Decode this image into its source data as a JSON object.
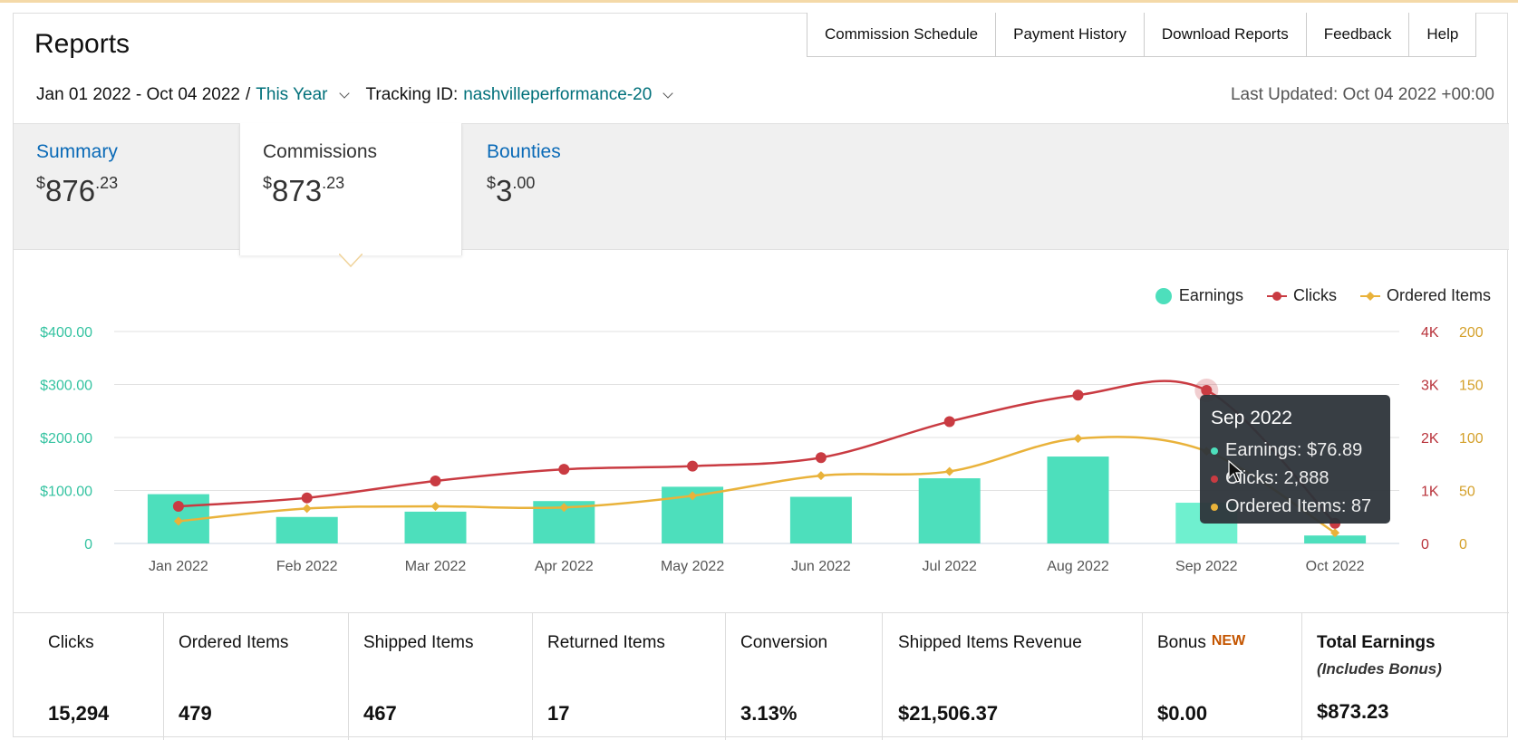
{
  "header": {
    "title": "Reports",
    "nav": [
      "Commission Schedule",
      "Payment History",
      "Download Reports",
      "Feedback",
      "Help"
    ],
    "date_range": "Jan 01 2022 - Oct 04 2022",
    "date_separator": "/",
    "period": "This Year",
    "tracking_label": "Tracking ID:",
    "tracking_id": "nashvilleperformance-20",
    "last_updated": "Last Updated: Oct 04 2022 +00:00"
  },
  "tabs": {
    "summary": {
      "label": "Summary",
      "currency": "$",
      "whole": "876",
      "cents": ".23"
    },
    "commissions": {
      "label": "Commissions",
      "currency": "$",
      "whole": "873",
      "cents": ".23"
    },
    "bounties": {
      "label": "Bounties",
      "currency": "$",
      "whole": "3",
      "cents": ".00"
    }
  },
  "colors": {
    "earnings": "#4ddfbc",
    "clicks": "#c93b42",
    "ordered": "#e9b23a",
    "axis_left": "#35c3a1",
    "axis_clicks": "#b8323a",
    "axis_ordered": "#d4a02a"
  },
  "chart_data": {
    "type": "bar",
    "categories": [
      "Jan 2022",
      "Feb 2022",
      "Mar 2022",
      "Apr 2022",
      "May 2022",
      "Jun 2022",
      "Jul 2022",
      "Aug 2022",
      "Sep 2022",
      "Oct 2022"
    ],
    "series": [
      {
        "name": "Earnings",
        "type": "bar",
        "axis": "left",
        "values": [
          93,
          50,
          60,
          80,
          107,
          88,
          123,
          164,
          76.89,
          15
        ]
      },
      {
        "name": "Clicks",
        "type": "line",
        "axis": "right1",
        "values": [
          700,
          860,
          1180,
          1400,
          1460,
          1620,
          2300,
          2800,
          2888,
          380
        ]
      },
      {
        "name": "Ordered Items",
        "type": "line",
        "axis": "right2",
        "values": [
          21,
          33,
          35,
          34,
          45,
          64,
          68,
          99,
          87,
          10
        ]
      }
    ],
    "y_left": {
      "ticks": [
        "0",
        "$100.00",
        "$200.00",
        "$300.00",
        "$400.00"
      ],
      "ylim": [
        0,
        400
      ]
    },
    "y_right1": {
      "ticks": [
        "0",
        "1K",
        "2K",
        "3K",
        "4K"
      ],
      "ylim": [
        0,
        4000
      ]
    },
    "y_right2": {
      "ticks": [
        "0",
        "50",
        "100",
        "150",
        "200"
      ],
      "ylim": [
        0,
        200
      ]
    },
    "legend": [
      "Earnings",
      "Clicks",
      "Ordered Items"
    ],
    "legend_position": "top-right",
    "grid": true,
    "highlighted_index": 8
  },
  "tooltip": {
    "title": "Sep 2022",
    "earnings": "Earnings: $76.89",
    "clicks": "Clicks: 2,888",
    "ordered": "Ordered Items: 87"
  },
  "stats": [
    {
      "label": "Clicks",
      "value": "15,294"
    },
    {
      "label": "Ordered Items",
      "value": "479"
    },
    {
      "label": "Shipped Items",
      "value": "467"
    },
    {
      "label": "Returned Items",
      "value": "17"
    },
    {
      "label": "Conversion",
      "value": "3.13%"
    },
    {
      "label": "Shipped Items Revenue",
      "value": "$21,506.37"
    },
    {
      "label": "Bonus",
      "badge": "NEW",
      "value": "$0.00"
    },
    {
      "label": "Total Earnings",
      "sub": "(Includes Bonus)",
      "value": "$873.23"
    }
  ]
}
